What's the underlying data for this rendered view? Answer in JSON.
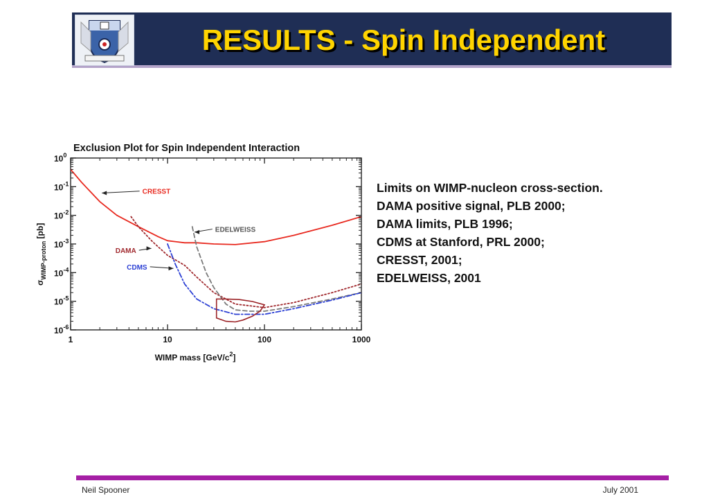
{
  "header": {
    "title": "RESULTS - Spin Independent",
    "crest_icon": "university-crest-icon",
    "colors": {
      "bar": "#1f2e55",
      "title": "#ffd400"
    }
  },
  "caption": {
    "lines": [
      "Limits on WIMP-nucleon cross-section.",
      "DAMA positive signal, PLB 2000;",
      "DAMA limits, PLB 1996;",
      "CDMS at Stanford, PRL 2000;",
      "CRESST, 2001;",
      "EDELWEISS, 2001"
    ]
  },
  "footer": {
    "left": "Neil Spooner",
    "right": "July 2001",
    "bar_color": "#a51fa5"
  },
  "chart_data": {
    "type": "line",
    "title": "Exclusion Plot for Spin Independent Interaction",
    "xlabel": "WIMP mass [GeV/c",
    "xlabel_sup": "2",
    "xlabel_end": "]",
    "ylabel_sym": "σ",
    "ylabel_sub": "WIMP-proton",
    "ylabel_unit": " [pb]",
    "x_scale": "log",
    "y_scale": "log",
    "xlim": [
      1,
      1000
    ],
    "ylim": [
      1e-06,
      1
    ],
    "x_ticks": [
      {
        "value": 1,
        "label": "1"
      },
      {
        "value": 10,
        "label": "10"
      },
      {
        "value": 100,
        "label": "100"
      },
      {
        "value": 1000,
        "label": "1000"
      }
    ],
    "y_ticks": [
      {
        "value": 1,
        "base": "10",
        "exp": "0"
      },
      {
        "value": 0.1,
        "base": "10",
        "exp": "-1"
      },
      {
        "value": 0.01,
        "base": "10",
        "exp": "-2"
      },
      {
        "value": 0.001,
        "base": "10",
        "exp": "-3"
      },
      {
        "value": 0.0001,
        "base": "10",
        "exp": "-4"
      },
      {
        "value": 1e-05,
        "base": "10",
        "exp": "-5"
      },
      {
        "value": 1e-06,
        "base": "10",
        "exp": "-6"
      }
    ],
    "series": [
      {
        "name": "CRESST",
        "color": "#e8281e",
        "style": "solid",
        "x": [
          1,
          1.3,
          2,
          3,
          5,
          8,
          10,
          15,
          20,
          30,
          50,
          100,
          200,
          500,
          1000
        ],
        "y": [
          0.4,
          0.14,
          0.03,
          0.01,
          0.004,
          0.0018,
          0.0013,
          0.0011,
          0.0011,
          0.001,
          0.00095,
          0.0012,
          0.002,
          0.0045,
          0.009
        ]
      },
      {
        "name": "DAMA",
        "color": "#a0282d",
        "style": "dotted",
        "x": [
          4.2,
          5,
          7,
          10,
          15,
          20,
          30,
          50,
          100,
          200,
          500,
          1000
        ],
        "y": [
          0.009,
          0.004,
          0.0012,
          0.0004,
          0.00018,
          7e-05,
          2e-05,
          8e-06,
          6e-06,
          9e-06,
          2e-05,
          4e-05
        ]
      },
      {
        "name": "EDELWEISS",
        "color": "#7a7a7a",
        "style": "dashed",
        "x": [
          18,
          20,
          25,
          30,
          40,
          50,
          70,
          100,
          200,
          500,
          1000
        ],
        "y": [
          0.004,
          0.0008,
          0.0001,
          3e-05,
          8e-06,
          5e-06,
          4.5e-06,
          4.5e-06,
          6.5e-06,
          1.2e-05,
          2e-05
        ]
      },
      {
        "name": "CDMS",
        "color": "#2b3fd4",
        "style": "dashdot",
        "x": [
          10,
          12,
          15,
          20,
          30,
          50,
          100,
          200,
          500,
          1000
        ],
        "y": [
          0.001,
          0.0002,
          4e-05,
          1.2e-05,
          5.5e-06,
          3.5e-06,
          3.5e-06,
          5.5e-06,
          1.1e-05,
          2e-05
        ]
      }
    ],
    "dama_region": {
      "name": "DAMA positive signal",
      "color": "#9b2226",
      "x": [
        32,
        40,
        55,
        75,
        100,
        90,
        75,
        60,
        50,
        40,
        32,
        32
      ],
      "y": [
        1.2e-05,
        1.2e-05,
        1.15e-05,
        9.8e-06,
        7.5e-06,
        4.5e-06,
        3e-06,
        2.2e-06,
        1.9e-06,
        2e-06,
        2.6e-06,
        1.2e-05
      ]
    },
    "annotations": [
      {
        "label": "CRESST",
        "color": "#e8281e",
        "text_x": 5.5,
        "text_y": 0.07,
        "arrow_x": 2.1,
        "arrow_y": 0.06
      },
      {
        "label": "EDELWEISS",
        "color": "#555555",
        "text_x": 31,
        "text_y": 0.0033,
        "arrow_x": 19,
        "arrow_y": 0.0026
      },
      {
        "label": "DAMA",
        "color": "#a0282d",
        "text_x": 2.9,
        "text_y": 0.0006,
        "arrow_x": 6.8,
        "arrow_y": 0.0007
      },
      {
        "label": "CDMS",
        "color": "#2b3fd4",
        "text_x": 3.8,
        "text_y": 0.00016,
        "arrow_x": 11.5,
        "arrow_y": 0.00014
      }
    ]
  }
}
